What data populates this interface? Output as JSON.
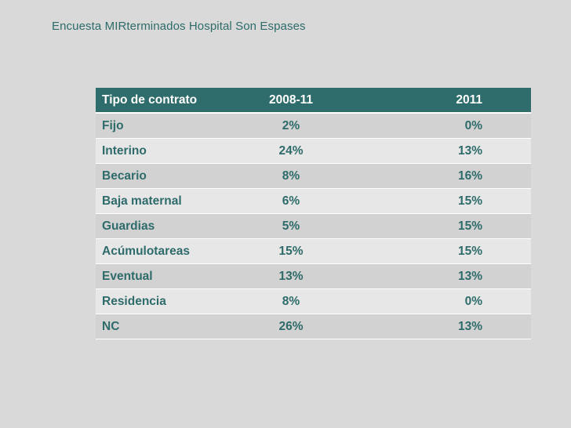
{
  "slide": {
    "title": "Encuesta MIRterminados Hospital Son Espases"
  },
  "table": {
    "headers": [
      "Tipo de contrato",
      "2008-11",
      "2011"
    ],
    "rows": [
      [
        "Fijo",
        "2%",
        "0%"
      ],
      [
        "Interino",
        "24%",
        "13%"
      ],
      [
        "Becario",
        "8%",
        "16%"
      ],
      [
        "Baja maternal",
        "6%",
        "15%"
      ],
      [
        "Guardias",
        "5%",
        "15%"
      ],
      [
        "Acúmulotareas",
        "15%",
        "15%"
      ],
      [
        "Eventual",
        "13%",
        "13%"
      ],
      [
        "Residencia",
        "8%",
        "0%"
      ],
      [
        "NC",
        "26%",
        "13%"
      ]
    ]
  },
  "colors": {
    "background": "#d9d9d9",
    "header": "#2f6d6c",
    "text": "#2e6b6a",
    "row_odd": "#d2d2d2",
    "row_even": "#e7e7e7"
  }
}
